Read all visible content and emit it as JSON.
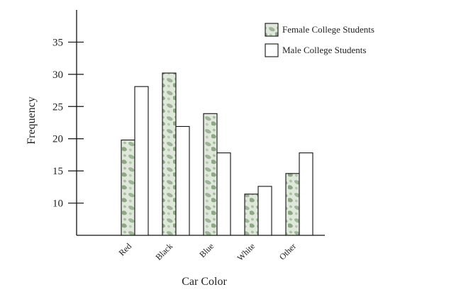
{
  "chart_data": {
    "type": "bar",
    "categories": [
      "Red",
      "Black",
      "Blue",
      "White",
      "Other"
    ],
    "series": [
      {
        "name": "Female College Students",
        "values": [
          19.8,
          30.2,
          23.9,
          11.4,
          14.6
        ],
        "fill": "#cdd9c8",
        "pattern": "camouflage"
      },
      {
        "name": "Male College Students",
        "values": [
          28.1,
          21.9,
          17.8,
          12.6,
          17.8
        ],
        "fill": "#ffffff"
      }
    ],
    "title": "",
    "xlabel": "Car Color",
    "ylabel": "Frequency",
    "ylim": [
      5,
      40
    ],
    "yticks": [
      "10",
      "15",
      "20",
      "25",
      "30",
      "35"
    ],
    "grid": false,
    "legend_position": "top-right",
    "bar_outline_color": "#111111",
    "axis_color": "#111111"
  }
}
